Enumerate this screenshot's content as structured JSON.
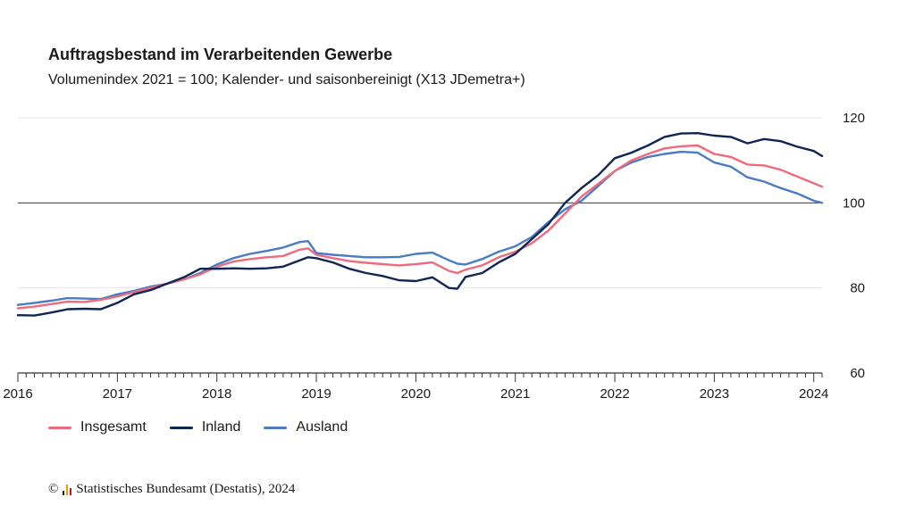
{
  "title": "Auftragsbestand im Verarbeitenden Gewerbe",
  "subtitle": "Volumenindex 2021 = 100; Kalender- und saisonbereinigt (X13 JDemetra+)",
  "credit": {
    "copyright_symbol": "©",
    "text": "Statistisches Bundesamt (Destatis), 2024",
    "icon": "destatis-logo-bars-icon"
  },
  "colors": {
    "Insgesamt": "#ee6a7d",
    "Inland": "#0f2654",
    "Ausland": "#4a7bc4",
    "grid": "#e5e5e5",
    "reference": "#333333",
    "axis": "#333333"
  },
  "chart_data": {
    "type": "line",
    "title": "Auftragsbestand im Verarbeitenden Gewerbe",
    "subtitle": "Volumenindex 2021 = 100; Kalender- und saisonbereinigt (X13 JDemetra+)",
    "xlabel": "",
    "ylabel": "",
    "x_range": [
      "2016-01",
      "2024-02"
    ],
    "ylim": [
      60,
      120
    ],
    "y_ticks": [
      60,
      80,
      100,
      120
    ],
    "x_tick_labels": [
      "2016",
      "2017",
      "2018",
      "2019",
      "2020",
      "2021",
      "2022",
      "2023",
      "2024"
    ],
    "reference_line": 100,
    "grid": true,
    "legend_position": "bottom-left",
    "y_axis_position": "right",
    "series": [
      {
        "name": "Insgesamt",
        "points": [
          [
            "2016-01",
            75.2
          ],
          [
            "2016-03",
            75.6
          ],
          [
            "2016-05",
            76.2
          ],
          [
            "2016-07",
            76.8
          ],
          [
            "2016-09",
            76.7
          ],
          [
            "2016-11",
            77.2
          ],
          [
            "2017-01",
            78.0
          ],
          [
            "2017-03",
            79.0
          ],
          [
            "2017-05",
            80.0
          ],
          [
            "2017-07",
            81.0
          ],
          [
            "2017-09",
            82.0
          ],
          [
            "2017-11",
            83.2
          ],
          [
            "2018-01",
            85.0
          ],
          [
            "2018-03",
            86.2
          ],
          [
            "2018-05",
            86.8
          ],
          [
            "2018-07",
            87.2
          ],
          [
            "2018-09",
            87.5
          ],
          [
            "2018-11",
            89.0
          ],
          [
            "2018-12",
            89.3
          ],
          [
            "2019-01",
            87.8
          ],
          [
            "2019-03",
            87.0
          ],
          [
            "2019-05",
            86.3
          ],
          [
            "2019-07",
            85.9
          ],
          [
            "2019-09",
            85.6
          ],
          [
            "2019-11",
            85.3
          ],
          [
            "2020-01",
            85.6
          ],
          [
            "2020-03",
            86.0
          ],
          [
            "2020-05",
            84.0
          ],
          [
            "2020-06",
            83.5
          ],
          [
            "2020-07",
            84.3
          ],
          [
            "2020-09",
            85.3
          ],
          [
            "2020-11",
            87.2
          ],
          [
            "2021-01",
            88.5
          ],
          [
            "2021-03",
            90.5
          ],
          [
            "2021-05",
            93.5
          ],
          [
            "2021-07",
            97.5
          ],
          [
            "2021-09",
            101.5
          ],
          [
            "2021-11",
            104.5
          ],
          [
            "2022-01",
            107.5
          ],
          [
            "2022-03",
            110.0
          ],
          [
            "2022-05",
            111.5
          ],
          [
            "2022-07",
            112.8
          ],
          [
            "2022-09",
            113.3
          ],
          [
            "2022-11",
            113.5
          ],
          [
            "2023-01",
            111.5
          ],
          [
            "2023-03",
            110.8
          ],
          [
            "2023-05",
            109.0
          ],
          [
            "2023-07",
            108.8
          ],
          [
            "2023-09",
            107.8
          ],
          [
            "2023-11",
            106.2
          ],
          [
            "2024-01",
            104.6
          ],
          [
            "2024-02",
            103.8
          ]
        ]
      },
      {
        "name": "Inland",
        "points": [
          [
            "2016-01",
            73.6
          ],
          [
            "2016-03",
            73.5
          ],
          [
            "2016-05",
            74.2
          ],
          [
            "2016-07",
            75.0
          ],
          [
            "2016-09",
            75.1
          ],
          [
            "2016-11",
            75.0
          ],
          [
            "2017-01",
            76.5
          ],
          [
            "2017-03",
            78.5
          ],
          [
            "2017-05",
            79.5
          ],
          [
            "2017-07",
            81.0
          ],
          [
            "2017-09",
            82.5
          ],
          [
            "2017-11",
            84.5
          ],
          [
            "2018-01",
            84.5
          ],
          [
            "2018-03",
            84.6
          ],
          [
            "2018-05",
            84.5
          ],
          [
            "2018-07",
            84.6
          ],
          [
            "2018-09",
            85.0
          ],
          [
            "2018-11",
            86.5
          ],
          [
            "2018-12",
            87.2
          ],
          [
            "2019-01",
            87.0
          ],
          [
            "2019-03",
            86.0
          ],
          [
            "2019-05",
            84.5
          ],
          [
            "2019-07",
            83.5
          ],
          [
            "2019-09",
            82.8
          ],
          [
            "2019-11",
            81.8
          ],
          [
            "2020-01",
            81.6
          ],
          [
            "2020-03",
            82.5
          ],
          [
            "2020-05",
            80.0
          ],
          [
            "2020-06",
            79.8
          ],
          [
            "2020-07",
            82.6
          ],
          [
            "2020-09",
            83.5
          ],
          [
            "2020-11",
            86.0
          ],
          [
            "2021-01",
            88.0
          ],
          [
            "2021-03",
            91.5
          ],
          [
            "2021-05",
            95.0
          ],
          [
            "2021-07",
            100.0
          ],
          [
            "2021-09",
            103.5
          ],
          [
            "2021-11",
            106.5
          ],
          [
            "2022-01",
            110.5
          ],
          [
            "2022-03",
            111.8
          ],
          [
            "2022-05",
            113.5
          ],
          [
            "2022-07",
            115.5
          ],
          [
            "2022-09",
            116.3
          ],
          [
            "2022-11",
            116.4
          ],
          [
            "2023-01",
            115.8
          ],
          [
            "2023-03",
            115.5
          ],
          [
            "2023-05",
            114.0
          ],
          [
            "2023-07",
            115.0
          ],
          [
            "2023-09",
            114.5
          ],
          [
            "2023-11",
            113.2
          ],
          [
            "2024-01",
            112.2
          ],
          [
            "2024-02",
            111.0
          ]
        ]
      },
      {
        "name": "Ausland",
        "points": [
          [
            "2016-01",
            76.0
          ],
          [
            "2016-03",
            76.5
          ],
          [
            "2016-05",
            77.0
          ],
          [
            "2016-07",
            77.6
          ],
          [
            "2016-09",
            77.5
          ],
          [
            "2016-11",
            77.4
          ],
          [
            "2017-01",
            78.5
          ],
          [
            "2017-03",
            79.3
          ],
          [
            "2017-05",
            80.3
          ],
          [
            "2017-07",
            81.0
          ],
          [
            "2017-09",
            82.0
          ],
          [
            "2017-11",
            83.5
          ],
          [
            "2018-01",
            85.5
          ],
          [
            "2018-03",
            87.0
          ],
          [
            "2018-05",
            88.0
          ],
          [
            "2018-07",
            88.7
          ],
          [
            "2018-09",
            89.5
          ],
          [
            "2018-11",
            90.8
          ],
          [
            "2018-12",
            91.0
          ],
          [
            "2019-01",
            88.2
          ],
          [
            "2019-03",
            87.8
          ],
          [
            "2019-05",
            87.5
          ],
          [
            "2019-07",
            87.2
          ],
          [
            "2019-09",
            87.2
          ],
          [
            "2019-11",
            87.3
          ],
          [
            "2020-01",
            88.0
          ],
          [
            "2020-03",
            88.3
          ],
          [
            "2020-05",
            86.5
          ],
          [
            "2020-06",
            85.7
          ],
          [
            "2020-07",
            85.5
          ],
          [
            "2020-09",
            86.8
          ],
          [
            "2020-11",
            88.5
          ],
          [
            "2021-01",
            89.8
          ],
          [
            "2021-03",
            92.0
          ],
          [
            "2021-05",
            95.5
          ],
          [
            "2021-07",
            98.5
          ],
          [
            "2021-09",
            100.5
          ],
          [
            "2021-11",
            104.0
          ],
          [
            "2022-01",
            107.5
          ],
          [
            "2022-03",
            109.5
          ],
          [
            "2022-05",
            110.8
          ],
          [
            "2022-07",
            111.5
          ],
          [
            "2022-09",
            112.0
          ],
          [
            "2022-11",
            111.8
          ],
          [
            "2023-01",
            109.5
          ],
          [
            "2023-03",
            108.5
          ],
          [
            "2023-05",
            106.0
          ],
          [
            "2023-07",
            105.0
          ],
          [
            "2023-09",
            103.5
          ],
          [
            "2023-11",
            102.2
          ],
          [
            "2024-01",
            100.5
          ],
          [
            "2024-02",
            100.0
          ]
        ]
      }
    ]
  }
}
